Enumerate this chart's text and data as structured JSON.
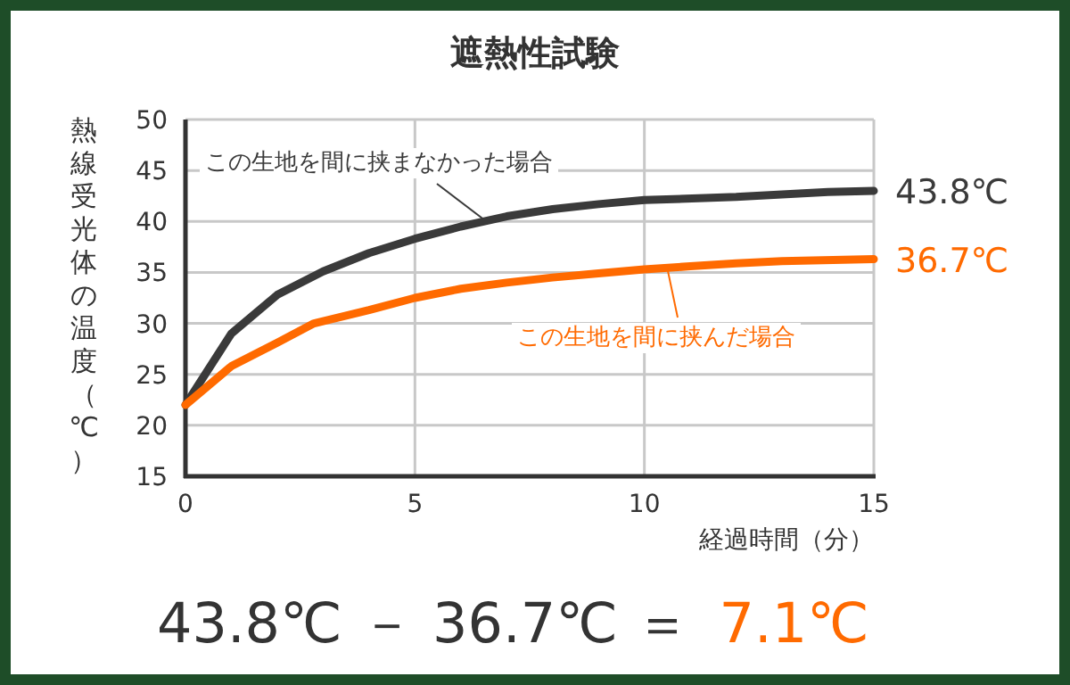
{
  "chart_data": {
    "type": "line",
    "title": "遮熱性試験",
    "xlabel": "経過時間（分）",
    "ylabel": "熱線受光体の温度（℃）",
    "xlim": [
      0,
      15
    ],
    "xticks": [
      0,
      5,
      10,
      15
    ],
    "ylim": [
      15,
      50
    ],
    "yticks": [
      15,
      20,
      25,
      30,
      35,
      40,
      45,
      50
    ],
    "grid": true,
    "marker": "none",
    "line_style": "solid",
    "series": [
      {
        "name": "この生地を間に挟まなかった場合",
        "color": "#3a3a3a",
        "x": [
          0,
          1,
          2,
          3,
          4,
          5,
          6,
          7,
          8,
          9,
          10,
          12,
          14,
          15
        ],
        "values": [
          22,
          29.0,
          32.8,
          35.1,
          36.9,
          38.3,
          39.5,
          40.5,
          41.2,
          41.7,
          42.1,
          42.4,
          42.9,
          43.0
        ]
      },
      {
        "name": "この生地を間に挟んだ場合",
        "color": "#ff6a00",
        "x": [
          0,
          1,
          2,
          2.8,
          4,
          5,
          6,
          7,
          8,
          9,
          10,
          11,
          12,
          13,
          15
        ],
        "values": [
          22,
          25.8,
          28.1,
          30.0,
          31.3,
          32.5,
          33.4,
          34.0,
          34.5,
          34.9,
          35.3,
          35.6,
          35.9,
          36.1,
          36.3
        ]
      }
    ],
    "annotations": [
      {
        "text": "43.8℃",
        "x": 15,
        "y": 43.0
      },
      {
        "text": "36.7℃",
        "x": 15,
        "y": 36.3
      },
      "43.8℃ － 36.7℃ ＝",
      "7.1℃"
    ]
  }
}
